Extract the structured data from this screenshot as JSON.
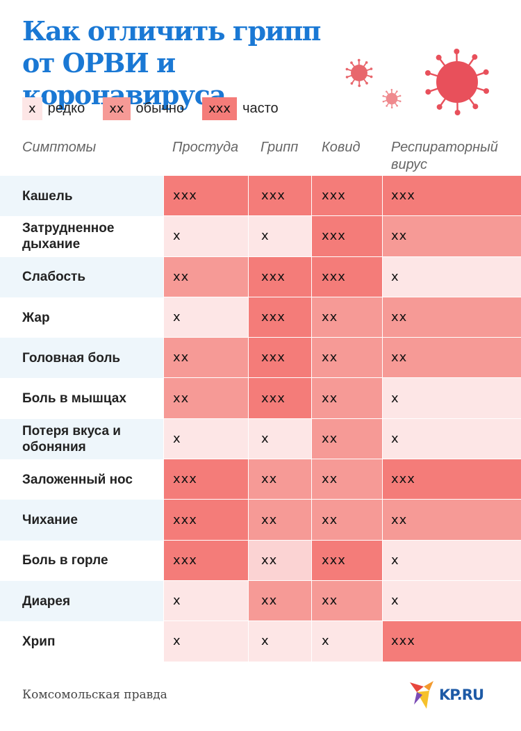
{
  "title": "Как отличить грипп от ОРВИ и коронавируса",
  "legend": [
    {
      "mark": "х",
      "label": "редко",
      "color": "#fde6e6"
    },
    {
      "mark": "хх",
      "label": "обычно",
      "color": "#f69a96"
    },
    {
      "mark": "ххх",
      "label": "часто",
      "color": "#f47c79"
    }
  ],
  "chart_data": {
    "type": "table",
    "title": "Как отличить грипп от ОРВИ и коронавируса",
    "row_header": "Симптомы",
    "columns": [
      "Простуда",
      "Грипп",
      "Ковид",
      "Респираторный вирус"
    ],
    "rows": [
      {
        "symptom": "Кашель",
        "values": [
          "ххх",
          "ххх",
          "ххх",
          "ххх"
        ]
      },
      {
        "symptom": "Затрудненное дыхание",
        "values": [
          "х",
          "х",
          "ххх",
          "хх"
        ]
      },
      {
        "symptom": "Слабость",
        "values": [
          "хх",
          "ххх",
          "ххх",
          "х"
        ]
      },
      {
        "symptom": "Жар",
        "values": [
          "х",
          "ххх",
          "хх",
          "хх"
        ]
      },
      {
        "symptom": "Головная боль",
        "values": [
          "хх",
          "ххх",
          "хх",
          "хх"
        ]
      },
      {
        "symptom": "Боль в мышцах",
        "values": [
          "хх",
          "ххх",
          "хх",
          "х"
        ]
      },
      {
        "symptom": "Потеря вкуса и обоняния",
        "values": [
          "х",
          "х",
          "хх",
          "х"
        ]
      },
      {
        "symptom": "Заложенный нос",
        "values": [
          "ххх",
          "хх",
          "хх",
          "ххх"
        ]
      },
      {
        "symptom": "Чихание",
        "values": [
          "ххх",
          "хх",
          "хх",
          "хх"
        ]
      },
      {
        "symptom": "Боль в горле",
        "values": [
          "ххх",
          "хх",
          "ххх",
          "х"
        ]
      },
      {
        "symptom": "Диарея",
        "values": [
          "х",
          "хх",
          "хх",
          "х"
        ]
      },
      {
        "symptom": "Хрип",
        "values": [
          "х",
          "х",
          "х",
          "ххх"
        ]
      }
    ]
  },
  "footer": {
    "source": "Комсомольская правда",
    "logo": "KP.RU"
  },
  "colors": {
    "title": "#1a78d4",
    "virus": "#e8505b",
    "row_alt": "#eef6fb"
  }
}
